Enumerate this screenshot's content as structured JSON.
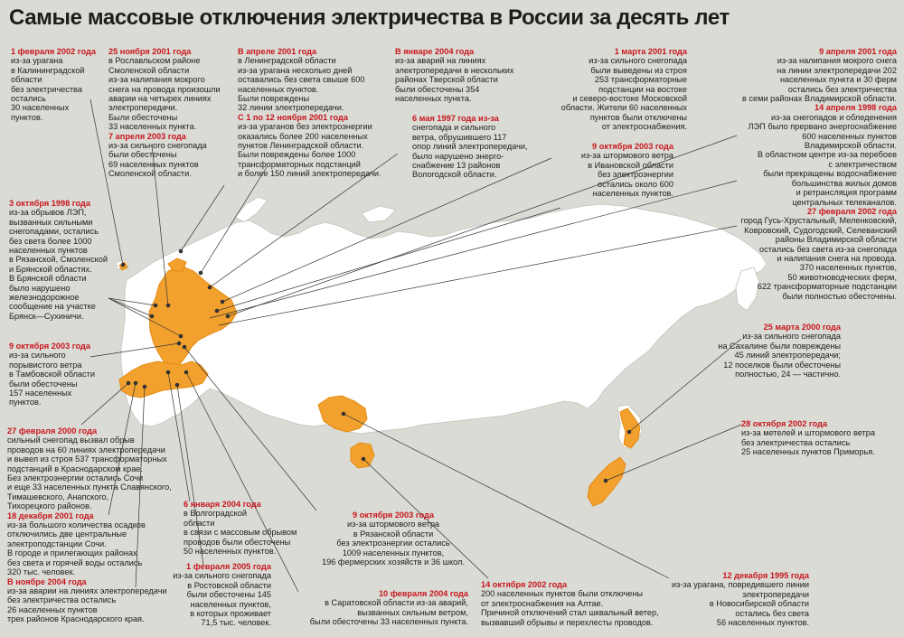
{
  "title": "Самые массовые отключения электричества в России за десять лет",
  "events": [
    {
      "date": "1 февраля 2002 года",
      "text": "из-за урагана\nв Калининградской\nобласти\nбез электричества\nостались\n30 населенных\nпунктов."
    },
    {
      "date": "25 ноября 2001 года",
      "text": "в Рославльском районе\nСмоленской области\nиз-за налипания мокрого\nснега на провода произошли\nаварии на четырех линиях\nэлектропередачи.\nБыли обесточены\n33 населенных пункта."
    },
    {
      "date": "7 апреля 2003 года",
      "text": "из-за сильного снегопада\nбыли обесточены\n69 населенных пунктов\nСмоленской области."
    },
    {
      "date": "В апреле 2001 года",
      "text": "в Ленинградской области\nиз-за урагана несколько дней\nоставались без света свыше 600\nнаселенных пунктов.\nБыли повреждены\n32 линии электропередачи."
    },
    {
      "date": "С 1 по 12 ноября 2001 года",
      "text": "из-за ураганов без электроэнергии\nоказались более 200 населенных\nпунктов Ленинградской области.\nБыли повреждены более 1000\nтрансформаторных подстанций\nи более 150 линий электропередачи."
    },
    {
      "date": "В январе 2004 года",
      "text": "из-за аварий на линиях\nэлектропередачи в нескольких\nрайонах Тверской области\nбыли обесточены 354\nнаселенных пункта."
    },
    {
      "date": "6 мая 1997 года из-за",
      "text": "снегопада и сильного\nветра, обрушившего 117\nопор линий электропередачи,\nбыло нарушено энерго-\nснабжение 13 районов\nВологодской области."
    },
    {
      "date": "1 марта 2001 года",
      "text": "из-за сильного снегопада\nбыли выведены из строя\n253 трансформаторные\nподстанции на востоке\nи северо-востоке Московской\nобласти. Жители 60 населенных\nпунктов были отключены\nот электроснабжения."
    },
    {
      "date": "9 октября 2003 года",
      "text": "из-за штормового ветра\nв Ивановской области\nбез электроэнергии\nостались около 600\nнаселенных пунктов."
    },
    {
      "date": "9 апреля 2001 года",
      "text": "из-за налипания мокрого снега\nна линии электропередачи 202\nнаселенных пункта и 30 ферм\nостались без электричества\nв семи районах Владимирской области."
    },
    {
      "date": "14 апреля 1998 года",
      "text": "из-за снегопадов и обледенения\nЛЭП было прервано энергоснабжение\n600 населенных пунктов\nВладимирской области.\nВ областном центре из-за перебоев\nс электричеством\nбыли прекращены водоснабжение\nбольшинства жилых домов\nи ретрансляция программ\nцентральных телеканалов."
    },
    {
      "date": "27 февраля 2002 года",
      "text": "город Гусь-Хрустальный, Меленковский,\nКовровский, Судогодский, Селеванский\nрайоны Владимирской области\nостались без света из-за снегопада\nи налипания снега на провода.\n370 населенных пунктов,\n50 животноводческих ферм,\n622 трансформаторные подстанции\nбыли полностью обесточены."
    },
    {
      "date": "3 октября 1998 года",
      "text": "из-за обрывов ЛЭП,\nвызванных сильными\nснегопадами, остались\nбез света более 1000\nнаселенных пунктов\nв Рязанской, Смоленской\nи Брянской областях.\nВ Брянской области\nбыло нарушено\nжелезнодорожное\nсообщение на участке\nБрянск—Сухиничи."
    },
    {
      "date": "9 октября 2003 года",
      "text": "из-за сильного\nпорывистого ветра\nв Тамбовской области\nбыли обесточены\n157 населенных\nпунктов."
    },
    {
      "date": "25 марта 2000 года",
      "text": "из-за сильного снегопада\nна Сахалине были повреждены\n45 линий электропередачи;\n12 поселков были обесточены\nполностью, 24 — частично."
    },
    {
      "date": "28 октября 2002 года",
      "text": "из-за метелей и штормового ветра\nбез электричества остались\n25 населенных пунктов Приморья."
    },
    {
      "date": "27 февраля 2000 года",
      "text": "сильный снегопад вызвал обрыв\nпроводов на 60 линиях электропередачи\nи вывел из строя 537 трансформаторных\nподстанций в Краснодарском крае.\nБез электроэнергии остались Сочи\nи еще 33 населенных пункта Славянского,\nТимашевского, Анапского,\nТихорецкого районов."
    },
    {
      "date": "18 декабря 2001 года",
      "text": "из-за большого количества осадков\nотключились две центральные\nэлектроподстанции Сочи.\nВ городе и прилегающих районах\nбез света и горячей воды остались\n320 тыс. человек."
    },
    {
      "date": "В ноябре 2004 года",
      "text": "из-за аварии на линиях электропередачи\nбез электричества остались\n26 населенных пунктов\nтрех районов Краснодарского края."
    },
    {
      "date": "6 января 2004 года",
      "text": "в Волгоградской\nобласти\nв связи с массовым обрывом\nпроводов были обесточены\n50 населенных пунктов."
    },
    {
      "date": "1 февраля 2005 года",
      "text": "из-за сильного снегопада\nв Ростовской области\nбыли обесточены 145\nнаселенных пунктов,\nв которых проживает\n71,5 тыс. человек."
    },
    {
      "date": "9 октября 2003 года",
      "text": "из-за штормового ветра\nв Рязанской области\nбез электроэнергии остались\n1009 населенных пунктов,\n196 фермерских хозяйств и 36 школ."
    },
    {
      "date": "10 февраля 2004 года",
      "text": "в Саратовской области из-за аварий,\nвызванных сильным ветром,\nбыли обесточены 33 населенных пункта."
    },
    {
      "date": "14 октября 2002 года",
      "text": "200 населенных пунктов были отключены\nот электроснабжения на Алтае.\nПричиной отключений стал шквальный ветер,\nвызвавший обрывы и перехлесты проводов."
    },
    {
      "date": "12 декабря 1995 года",
      "text": "из-за урагана, повредившего линии\nэлектропередачи\nв Новосибирской области\nостались без света\n56 населенных пунктов."
    }
  ],
  "colors": {
    "accent": "#c8161d",
    "region": "#f2a12e",
    "land": "#ffffff",
    "sea": "#dadbd5"
  }
}
